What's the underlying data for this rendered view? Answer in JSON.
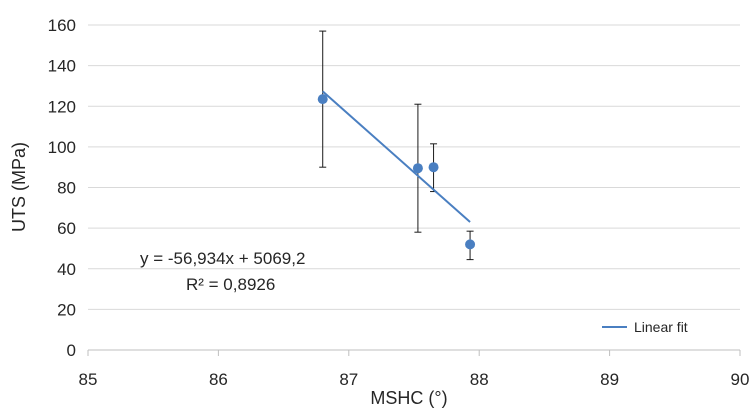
{
  "chart_data": {
    "type": "scatter",
    "title": "",
    "xlabel": "MSHC (°)",
    "ylabel": "UTS (MPa)",
    "xlim": [
      85,
      90
    ],
    "ylim": [
      0,
      160
    ],
    "x_ticks": [
      85,
      86,
      87,
      88,
      89,
      90
    ],
    "y_ticks": [
      0,
      20,
      40,
      60,
      80,
      100,
      120,
      140,
      160
    ],
    "grid": "horizontal",
    "points": [
      {
        "x": 86.8,
        "y": 123.5,
        "err_low": 90,
        "err_high": 157
      },
      {
        "x": 87.53,
        "y": 89.5,
        "err_low": 58,
        "err_high": 121
      },
      {
        "x": 87.65,
        "y": 90,
        "err_low": 78,
        "err_high": 101.5
      },
      {
        "x": 87.93,
        "y": 52,
        "err_low": 44.5,
        "err_high": 58.5
      }
    ],
    "fit": {
      "name": "Linear fit",
      "slope": -56.934,
      "intercept": 5069.2,
      "x_range": [
        86.8,
        87.93
      ],
      "equation": "y = -56,934x + 5069,2",
      "r2": "R² = 0,8926"
    },
    "legend": {
      "position": "bottom-right",
      "entries": [
        "Linear fit"
      ]
    },
    "colors": {
      "marker": "#4a7fc1",
      "fit_line": "#4a7fc1",
      "error_bar": "#1a1a1a",
      "grid": "#d9d9d9",
      "axis": "#bfbfbf"
    }
  }
}
